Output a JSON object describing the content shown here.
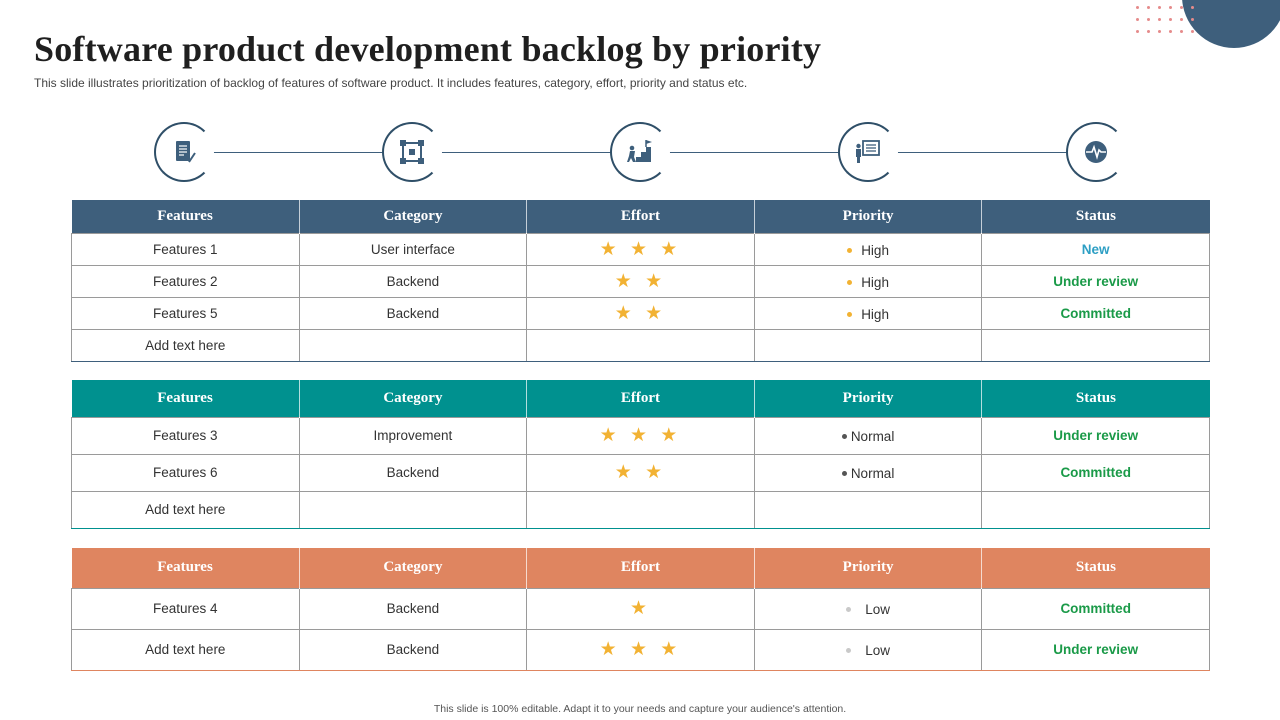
{
  "title": "Software product development backlog by priority",
  "subtitle": "This slide illustrates prioritization of backlog of features of software product. It includes features, category, effort, priority and status etc.",
  "footer": "This slide is 100% editable. Adapt it to your needs and capture your audience's attention.",
  "icons": [
    "document-icon",
    "network-icon",
    "stairs-goal-icon",
    "presentation-board-icon",
    "heartbeat-icon"
  ],
  "colors": {
    "navy": "#3e5f7c",
    "teal": "#00918f",
    "orange": "#df8560",
    "star": "#f2b233",
    "status_new": "#2e9fc4",
    "status_green": "#1a9a48",
    "priority_high": "#f2b233",
    "priority_normal": "#555555",
    "priority_low": "#c9c9c9"
  },
  "headers": {
    "features": "Features",
    "category": "Category",
    "effort": "Effort",
    "priority": "Priority",
    "status": "Status"
  },
  "tables": [
    {
      "rows": [
        {
          "feature": "Features 1",
          "category": "User interface",
          "effort": "★ ★ ★",
          "effort_count": 3,
          "priority": "High",
          "status": "New"
        },
        {
          "feature": "Features 2",
          "category": "Backend",
          "effort": "★ ★",
          "effort_count": 2,
          "priority": "High",
          "status": "Under review"
        },
        {
          "feature": "Features 5",
          "category": "Backend",
          "effort": "★ ★",
          "effort_count": 2,
          "priority": "High",
          "status": "Committed"
        },
        {
          "feature": "Add text here",
          "category": "",
          "effort": "",
          "effort_count": 0,
          "priority": "",
          "status": ""
        }
      ]
    },
    {
      "rows": [
        {
          "feature": "Features 3",
          "category": "Improvement",
          "effort": "★ ★ ★",
          "effort_count": 3,
          "priority": "Normal",
          "status": "Under review"
        },
        {
          "feature": "Features 6",
          "category": "Backend",
          "effort": "★ ★",
          "effort_count": 2,
          "priority": "Normal",
          "status": "Committed"
        },
        {
          "feature": "Add text here",
          "category": "",
          "effort": "",
          "effort_count": 0,
          "priority": "",
          "status": ""
        }
      ]
    },
    {
      "rows": [
        {
          "feature": "Features 4",
          "category": "Backend",
          "effort": "★",
          "effort_count": 1,
          "priority": "Low",
          "status": "Committed"
        },
        {
          "feature": "Add text here",
          "category": "Backend",
          "effort": "★ ★ ★",
          "effort_count": 3,
          "priority": "Low",
          "status": "Under review"
        }
      ]
    }
  ]
}
